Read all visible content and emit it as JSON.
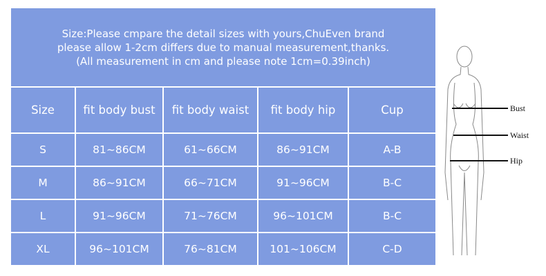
{
  "note": [
    "Size:Please cmpare the detail sizes with yours,ChuEven brand",
    "please allow 1-2cm differs due to manual measurement,thanks.",
    "(All measurement in cm and please note 1cm=0.39inch)"
  ],
  "headers": [
    "Size",
    "fit body bust",
    "fit body waist",
    "fit body hip",
    "Cup"
  ],
  "rows": [
    [
      "S",
      "81~86CM",
      "61~66CM",
      "86~91CM",
      "A-B"
    ],
    [
      "M",
      "86~91CM",
      "66~71CM",
      "91~96CM",
      "B-C"
    ],
    [
      "L",
      "91~96CM",
      "71~76CM",
      "96~101CM",
      "B-C"
    ],
    [
      "XL",
      "96~101CM",
      "76~81CM",
      "101~106CM",
      "C-D"
    ]
  ],
  "figure": {
    "labels": [
      "Bust",
      "Waist",
      "Hip"
    ]
  },
  "colors": {
    "cell": "#7f9be0",
    "text": "#ffffff"
  }
}
